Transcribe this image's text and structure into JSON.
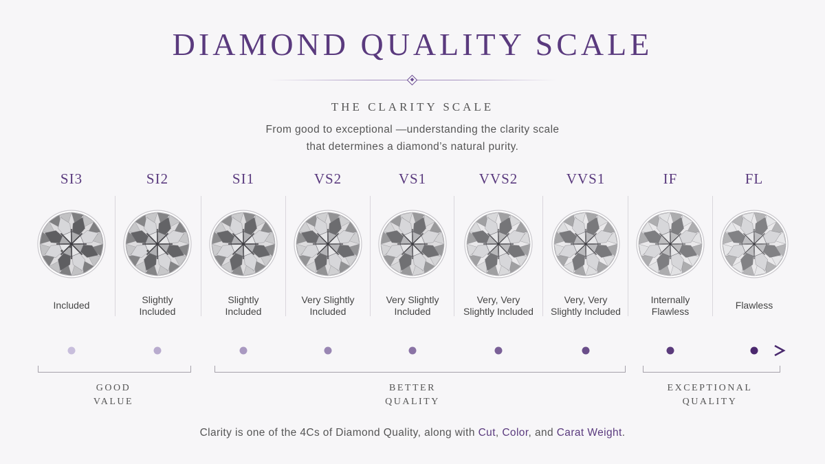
{
  "header": {
    "title": "DIAMOND QUALITY SCALE",
    "subtitle": "THE CLARITY SCALE",
    "description_line1": "From good to exceptional —understanding the clarity scale",
    "description_line2": "that determines a diamond’s natural purity."
  },
  "grades": [
    {
      "code": "SI3",
      "line1": "Included",
      "line2": "",
      "rank": 1
    },
    {
      "code": "SI2",
      "line1": "Slightly",
      "line2": "Included",
      "rank": 2
    },
    {
      "code": "SI1",
      "line1": "Slightly",
      "line2": "Included",
      "rank": 3
    },
    {
      "code": "VS2",
      "line1": "Very Slightly",
      "line2": "Included",
      "rank": 4
    },
    {
      "code": "VS1",
      "line1": "Very Slightly",
      "line2": "Included",
      "rank": 5
    },
    {
      "code": "VVS2",
      "line1": "Very, Very",
      "line2": "Slightly Included",
      "rank": 6
    },
    {
      "code": "VVS1",
      "line1": "Very, Very",
      "line2": "Slightly Included",
      "rank": 7
    },
    {
      "code": "IF",
      "line1": "Internally",
      "line2": "Flawless",
      "rank": 8
    },
    {
      "code": "FL",
      "line1": "Flawless",
      "line2": "",
      "rank": 9
    }
  ],
  "groups": {
    "good": {
      "line1": "GOOD",
      "line2": "VALUE"
    },
    "better": {
      "line1": "BETTER",
      "line2": "QUALITY"
    },
    "exceptional": {
      "line1": "EXCEPTIONAL",
      "line2": "QUALITY"
    }
  },
  "footer": {
    "prefix": "Clarity is one of the 4Cs of Diamond Quality, along with ",
    "cut": "Cut",
    "sep1": ", ",
    "color": "Color",
    "sep2": ", and ",
    "carat": "Carat Weight",
    "suffix": "."
  },
  "colors": {
    "accent": "#5a3a7e",
    "scale_start": "#e6def0",
    "scale_end": "#4a2a6e"
  },
  "icons": {
    "gem": "round-brilliant-diamond-icon",
    "title_ornament": "diamond-ornament-icon",
    "arrow": "arrow-right-icon"
  }
}
